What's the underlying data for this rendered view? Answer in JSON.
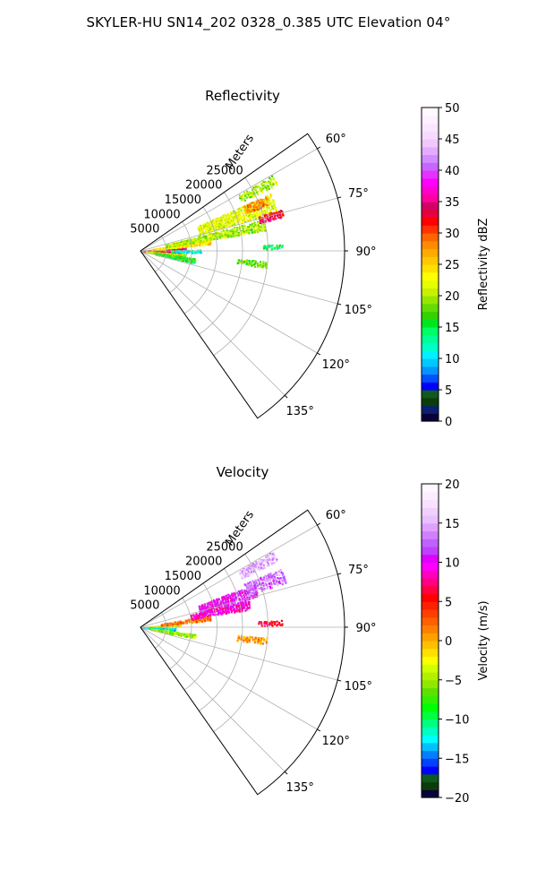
{
  "suptitle": "SKYLER-HU  SN14_202  0328_0.385 UTC Elevation 04°",
  "chart_data": [
    {
      "type": "heatmap",
      "projection": "polar-sector",
      "title": "Reflectivity",
      "radial_label": "Meters",
      "radial_ticks": [
        "5000",
        "10000",
        "15000",
        "20000",
        "25000"
      ],
      "radial_tick_values": [
        5000,
        10000,
        15000,
        20000,
        25000
      ],
      "rlim": [
        0,
        40000
      ],
      "angle_ticks": [
        "60°",
        "75°",
        "90°",
        "105°",
        "120°",
        "135°"
      ],
      "angle_tick_values": [
        60,
        75,
        90,
        105,
        120,
        135
      ],
      "theta_range_deg": [
        55,
        145
      ],
      "grid": true,
      "colorbar": {
        "label": "Reflectivity dBZ",
        "range": [
          0,
          50
        ],
        "ticks": [
          "0",
          "5",
          "10",
          "15",
          "20",
          "25",
          "30",
          "35",
          "40",
          "45",
          "50"
        ],
        "tick_values": [
          0,
          5,
          10,
          15,
          20,
          25,
          30,
          35,
          40,
          45,
          50
        ],
        "step": 1.25
      },
      "echoes": [
        {
          "az": 86,
          "az_w": 3,
          "r0": 0,
          "r1": 9000,
          "value": 35
        },
        {
          "az": 92,
          "az_w": 3,
          "r0": 0,
          "r1": 8000,
          "value": 33
        },
        {
          "az": 82,
          "az_w": 4,
          "r0": 2000,
          "r1": 14000,
          "value": 24
        },
        {
          "az": 96,
          "az_w": 4,
          "r0": 1000,
          "r1": 9000,
          "value": 20
        },
        {
          "az": 100,
          "az_w": 5,
          "r0": 3000,
          "r1": 11000,
          "value": 16
        },
        {
          "az": 90,
          "az_w": 3,
          "r0": 6000,
          "r1": 12000,
          "value": 12
        },
        {
          "az": 78,
          "az_w": 5,
          "r0": 5000,
          "r1": 25000,
          "value": 20
        },
        {
          "az": 70,
          "az_w": 8,
          "r0": 12000,
          "r1": 28000,
          "value": 22
        },
        {
          "az": 68,
          "az_w": 4,
          "r0": 22000,
          "r1": 27000,
          "value": 28
        },
        {
          "az": 75,
          "az_w": 3,
          "r0": 24000,
          "r1": 29000,
          "value": 33
        },
        {
          "az": 62,
          "az_w": 4,
          "r0": 22000,
          "r1": 30000,
          "value": 20
        },
        {
          "az": 96,
          "az_w": 3,
          "r0": 19000,
          "r1": 25000,
          "value": 18
        },
        {
          "az": 88,
          "az_w": 2,
          "r0": 24000,
          "r1": 28000,
          "value": 15
        }
      ]
    },
    {
      "type": "heatmap",
      "projection": "polar-sector",
      "title": "Velocity",
      "radial_label": "Meters",
      "radial_ticks": [
        "5000",
        "10000",
        "15000",
        "20000",
        "25000"
      ],
      "radial_tick_values": [
        5000,
        10000,
        15000,
        20000,
        25000
      ],
      "rlim": [
        0,
        40000
      ],
      "angle_ticks": [
        "60°",
        "75°",
        "90°",
        "105°",
        "120°",
        "135°"
      ],
      "angle_tick_values": [
        60,
        75,
        90,
        105,
        120,
        135
      ],
      "theta_range_deg": [
        55,
        145
      ],
      "grid": true,
      "colorbar": {
        "label": "Velocity (m/s)",
        "range": [
          -20,
          20
        ],
        "ticks": [
          "−20",
          "−15",
          "−10",
          "−5",
          "0",
          "5",
          "10",
          "15",
          "20"
        ],
        "tick_values": [
          -20,
          -15,
          -10,
          -5,
          0,
          5,
          10,
          15,
          20
        ],
        "step": 1
      },
      "echoes": [
        {
          "az": 86,
          "az_w": 4,
          "r0": 0,
          "r1": 8000,
          "value": -3
        },
        {
          "az": 93,
          "az_w": 4,
          "r0": 0,
          "r1": 7000,
          "value": -12
        },
        {
          "az": 99,
          "az_w": 4,
          "r0": 2000,
          "r1": 11000,
          "value": -5
        },
        {
          "az": 82,
          "az_w": 4,
          "r0": 4000,
          "r1": 14000,
          "value": 2
        },
        {
          "az": 78,
          "az_w": 5,
          "r0": 10000,
          "r1": 22000,
          "value": 9
        },
        {
          "az": 72,
          "az_w": 6,
          "r0": 12000,
          "r1": 24000,
          "value": 10
        },
        {
          "az": 70,
          "az_w": 6,
          "r0": 22000,
          "r1": 30000,
          "value": 13
        },
        {
          "az": 62,
          "az_w": 4,
          "r0": 22000,
          "r1": 30000,
          "value": 15
        },
        {
          "az": 96,
          "az_w": 3,
          "r0": 19000,
          "r1": 25000,
          "value": 1
        },
        {
          "az": 88,
          "az_w": 2,
          "r0": 23000,
          "r1": 28000,
          "value": 6
        }
      ]
    }
  ]
}
